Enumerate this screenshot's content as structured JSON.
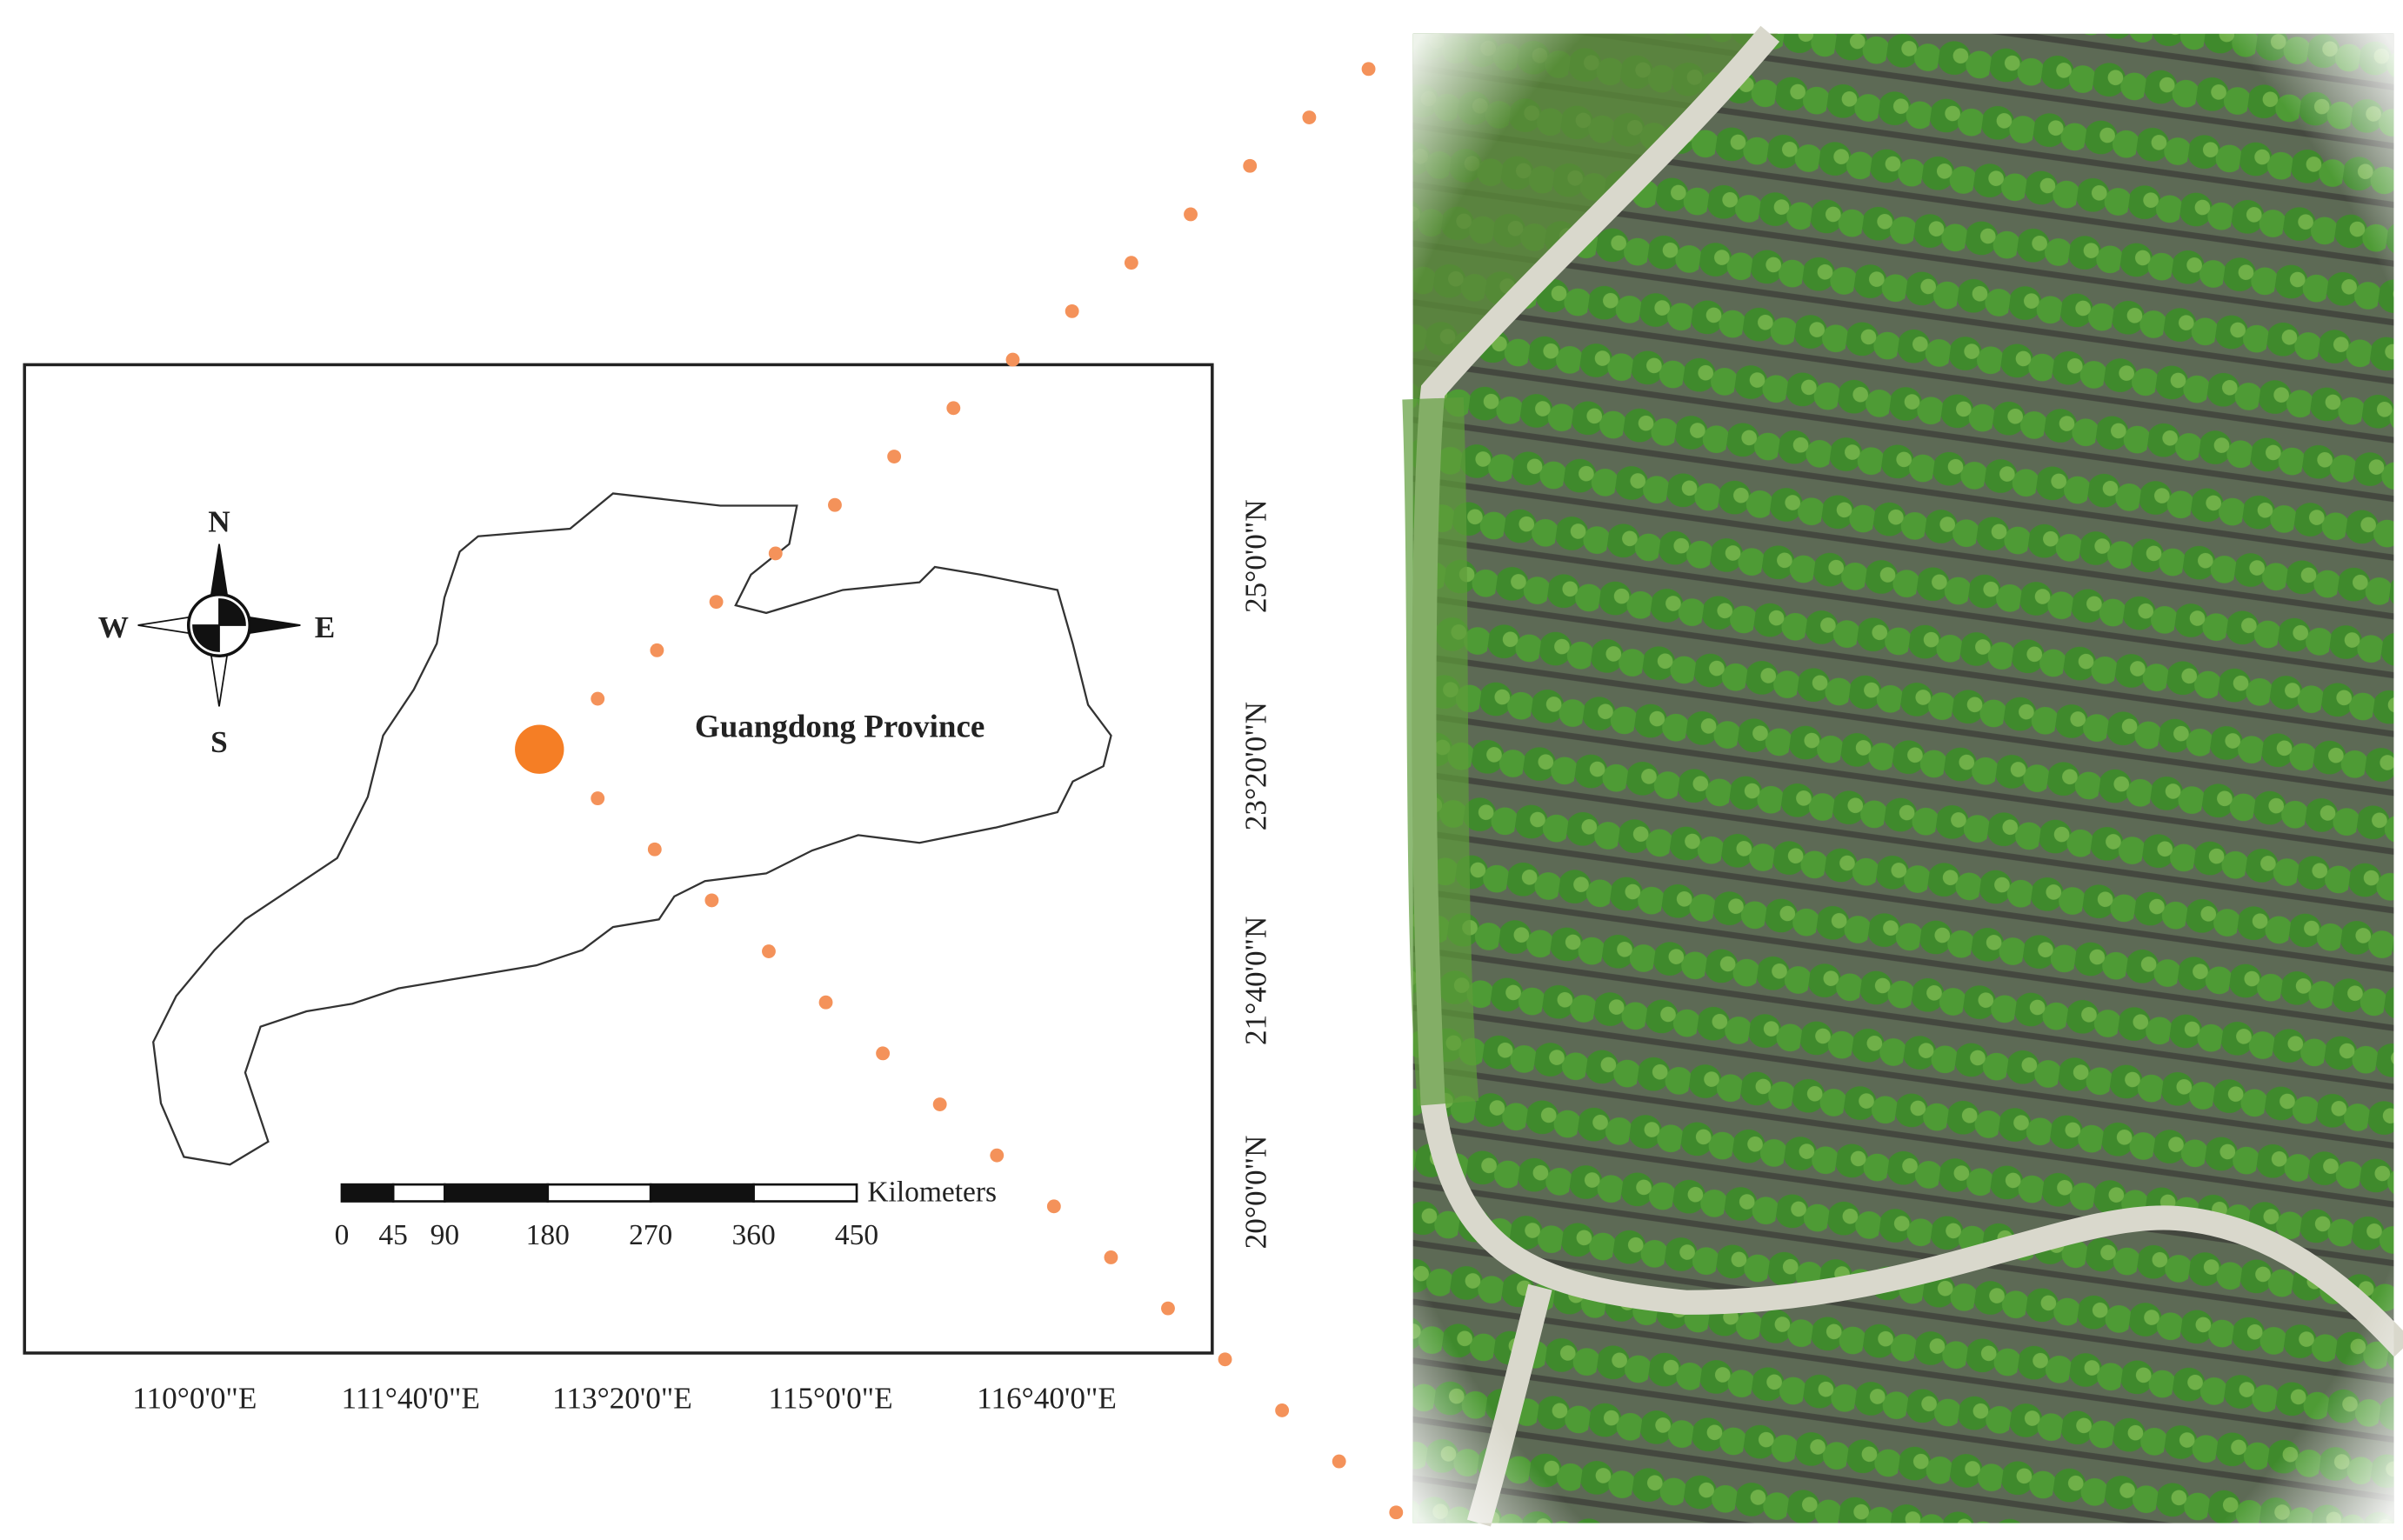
{
  "compass": {
    "north": "N",
    "south": "S",
    "east": "E",
    "west": "W"
  },
  "region_label": "Guangdong Province",
  "scale_bar": {
    "unit": "Kilometers",
    "ticks": [
      0,
      45,
      90,
      180,
      270,
      360,
      450
    ]
  },
  "longitude_labels": [
    "110°0'0\"E",
    "111°40'0\"E",
    "113°20'0\"E",
    "115°0'0\"E",
    "116°40'0\"E"
  ],
  "latitude_labels": [
    "25°0'0\"N",
    "23°20'0\"N",
    "21°40'0\"N",
    "20°0'0\"N"
  ]
}
